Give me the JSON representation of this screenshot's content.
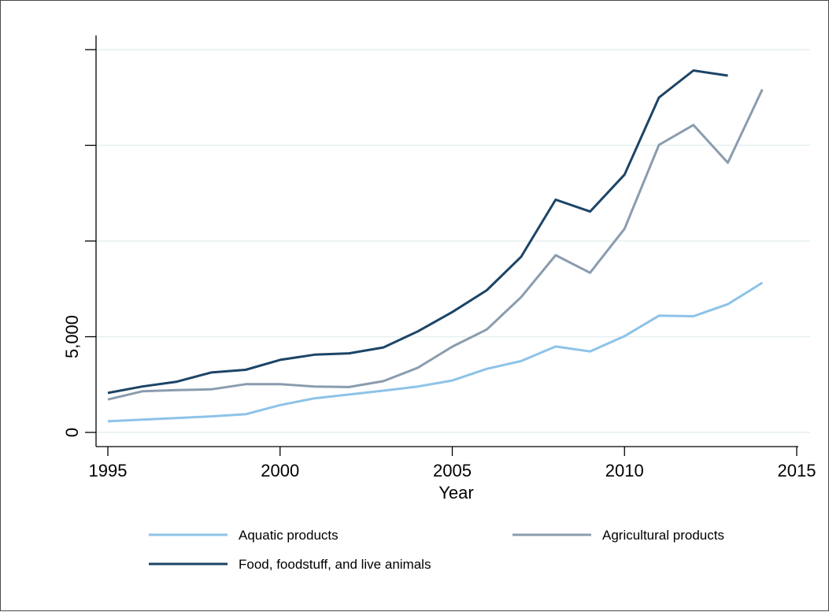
{
  "chart_data": {
    "type": "line",
    "title": "",
    "xlabel": "Year",
    "ylabel": "",
    "x": [
      1995,
      1996,
      1997,
      1998,
      1999,
      2000,
      2001,
      2002,
      2003,
      2004,
      2005,
      2006,
      2007,
      2008,
      2009,
      2010,
      2011,
      2012,
      2013,
      2014
    ],
    "xlim": [
      1995,
      2015
    ],
    "ylim": [
      0,
      20000
    ],
    "x_ticks": [
      1995,
      2000,
      2005,
      2010,
      2015
    ],
    "x_tick_labels": [
      "1995",
      "2000",
      "2005",
      "2010",
      "2015"
    ],
    "y_ticks": [
      0,
      5000,
      10000,
      15000,
      20000
    ],
    "y_tick_labels": [
      "0",
      "5,000",
      "",
      "",
      ""
    ],
    "grid": "horizontal",
    "legend_position": "bottom",
    "series": [
      {
        "name": "Aquatic products",
        "color": "#8dc3e8",
        "values": [
          580,
          670,
          750,
          840,
          950,
          1430,
          1780,
          1980,
          2180,
          2400,
          2710,
          3320,
          3730,
          4490,
          4230,
          5030,
          6100,
          6070,
          6700,
          7820
        ]
      },
      {
        "name": "Agricultural products",
        "color": "#8a9cae",
        "values": [
          1720,
          2150,
          2210,
          2250,
          2520,
          2520,
          2400,
          2370,
          2680,
          3380,
          4480,
          5380,
          7070,
          9260,
          8340,
          10640,
          15020,
          16060,
          14090,
          17920
        ]
      },
      {
        "name": "Food, foodstuff, and live animals",
        "color": "#1c4466",
        "values": [
          2060,
          2400,
          2650,
          3130,
          3270,
          3790,
          4060,
          4130,
          4440,
          5280,
          6290,
          7430,
          9180,
          12160,
          11540,
          13470,
          17500,
          18910,
          18640,
          null
        ]
      }
    ]
  }
}
